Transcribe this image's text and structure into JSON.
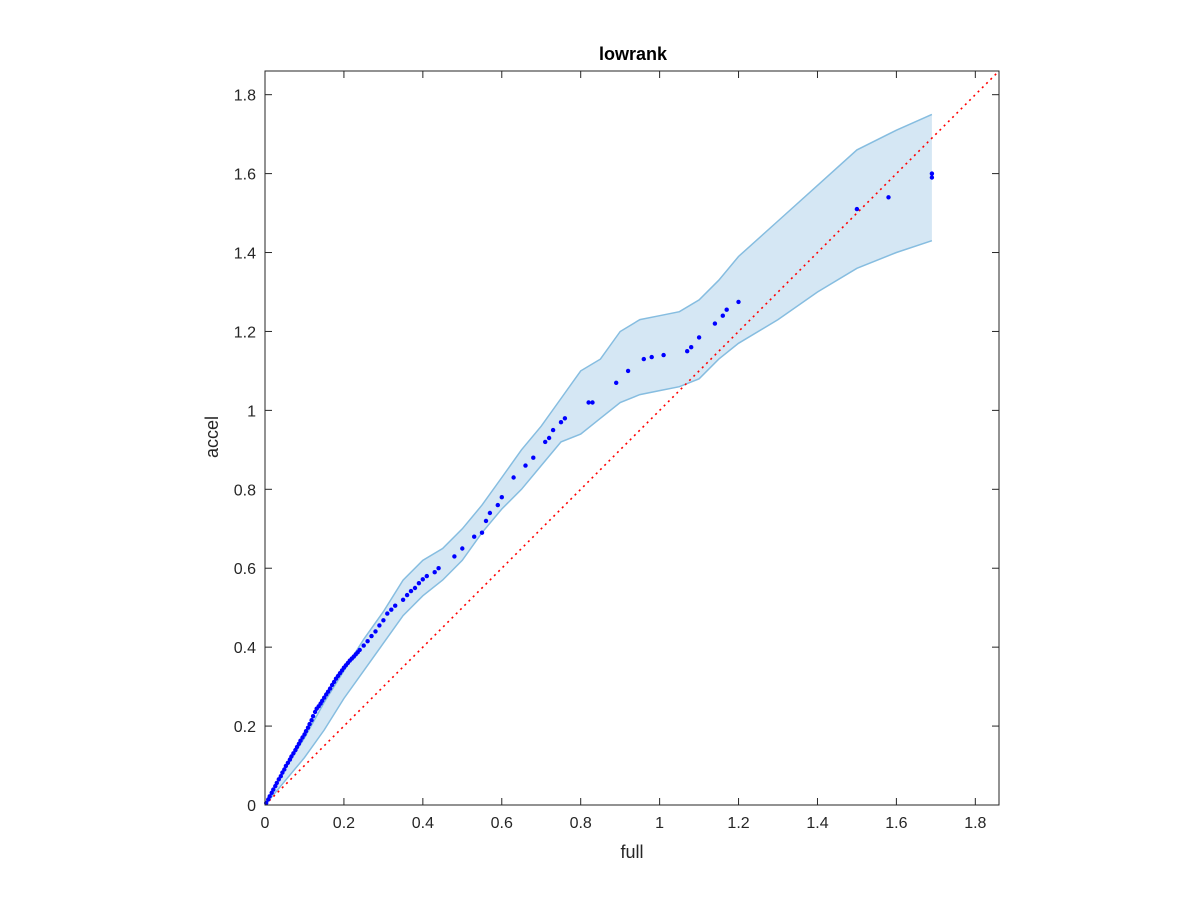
{
  "chart_data": {
    "type": "scatter",
    "title": "lowrank",
    "xlabel": "full",
    "ylabel": "accel",
    "xlim": [
      0,
      1.86
    ],
    "ylim": [
      0,
      1.86
    ],
    "xticks": [
      "0",
      "0.2",
      "0.4",
      "0.6",
      "0.8",
      "1",
      "1.2",
      "1.4",
      "1.6",
      "1.8"
    ],
    "yticks": [
      "0",
      "0.2",
      "0.4",
      "0.6",
      "0.8",
      "1",
      "1.2",
      "1.4",
      "1.6",
      "1.8"
    ],
    "xtick_values": [
      0,
      0.2,
      0.4,
      0.6,
      0.8,
      1.0,
      1.2,
      1.4,
      1.6,
      1.8
    ],
    "ytick_values": [
      0,
      0.2,
      0.4,
      0.6,
      0.8,
      1.0,
      1.2,
      1.4,
      1.6,
      1.8
    ],
    "grid": false,
    "colors": {
      "points": "#0000ff",
      "band_fill": "#d5e7f4",
      "band_edge": "#86bde0",
      "reference_line": "#ff0000",
      "axes": "#262626"
    },
    "reference_line": {
      "x": [
        0,
        1.86
      ],
      "y": [
        0,
        1.86
      ],
      "style": "dotted"
    },
    "band": {
      "x": [
        0,
        0.05,
        0.1,
        0.15,
        0.2,
        0.25,
        0.3,
        0.35,
        0.4,
        0.45,
        0.5,
        0.55,
        0.6,
        0.65,
        0.7,
        0.75,
        0.8,
        0.85,
        0.9,
        0.95,
        1.0,
        1.05,
        1.1,
        1.15,
        1.2,
        1.3,
        1.4,
        1.5,
        1.6,
        1.69
      ],
      "upper": [
        0,
        0.09,
        0.17,
        0.26,
        0.34,
        0.42,
        0.49,
        0.57,
        0.62,
        0.65,
        0.7,
        0.76,
        0.83,
        0.9,
        0.96,
        1.03,
        1.1,
        1.13,
        1.2,
        1.23,
        1.24,
        1.25,
        1.28,
        1.33,
        1.39,
        1.48,
        1.57,
        1.66,
        1.71,
        1.75
      ],
      "lower": [
        0,
        0.06,
        0.12,
        0.19,
        0.27,
        0.34,
        0.41,
        0.48,
        0.53,
        0.57,
        0.62,
        0.69,
        0.75,
        0.8,
        0.86,
        0.92,
        0.94,
        0.98,
        1.02,
        1.04,
        1.05,
        1.06,
        1.08,
        1.13,
        1.17,
        1.23,
        1.3,
        1.36,
        1.4,
        1.43
      ]
    },
    "points": {
      "x": [
        0.003,
        0.008,
        0.012,
        0.017,
        0.021,
        0.026,
        0.03,
        0.035,
        0.04,
        0.044,
        0.049,
        0.053,
        0.058,
        0.063,
        0.067,
        0.072,
        0.077,
        0.081,
        0.086,
        0.09,
        0.095,
        0.1,
        0.104,
        0.109,
        0.113,
        0.118,
        0.122,
        0.127,
        0.131,
        0.136,
        0.141,
        0.145,
        0.15,
        0.155,
        0.16,
        0.165,
        0.17,
        0.175,
        0.18,
        0.185,
        0.19,
        0.195,
        0.2,
        0.205,
        0.21,
        0.215,
        0.22,
        0.225,
        0.23,
        0.235,
        0.24,
        0.25,
        0.26,
        0.27,
        0.28,
        0.29,
        0.3,
        0.31,
        0.32,
        0.33,
        0.35,
        0.36,
        0.37,
        0.38,
        0.39,
        0.4,
        0.41,
        0.43,
        0.44,
        0.48,
        0.5,
        0.53,
        0.55,
        0.56,
        0.57,
        0.59,
        0.6,
        0.63,
        0.66,
        0.68,
        0.71,
        0.72,
        0.73,
        0.75,
        0.76,
        0.82,
        0.83,
        0.89,
        0.92,
        0.96,
        0.98,
        1.01,
        1.07,
        1.08,
        1.1,
        1.14,
        1.16,
        1.17,
        1.2,
        1.5,
        1.58,
        1.69,
        1.69
      ],
      "y": [
        0.005,
        0.014,
        0.022,
        0.031,
        0.039,
        0.048,
        0.056,
        0.065,
        0.073,
        0.082,
        0.09,
        0.099,
        0.107,
        0.115,
        0.123,
        0.131,
        0.139,
        0.147,
        0.155,
        0.163,
        0.171,
        0.179,
        0.187,
        0.196,
        0.205,
        0.215,
        0.225,
        0.236,
        0.244,
        0.25,
        0.257,
        0.264,
        0.272,
        0.28,
        0.287,
        0.295,
        0.304,
        0.312,
        0.32,
        0.327,
        0.334,
        0.341,
        0.348,
        0.354,
        0.36,
        0.366,
        0.371,
        0.376,
        0.382,
        0.387,
        0.393,
        0.404,
        0.415,
        0.428,
        0.44,
        0.455,
        0.468,
        0.485,
        0.495,
        0.505,
        0.52,
        0.532,
        0.542,
        0.55,
        0.562,
        0.572,
        0.58,
        0.59,
        0.6,
        0.63,
        0.65,
        0.68,
        0.69,
        0.72,
        0.74,
        0.76,
        0.78,
        0.83,
        0.86,
        0.88,
        0.92,
        0.93,
        0.95,
        0.97,
        0.98,
        1.02,
        1.02,
        1.07,
        1.1,
        1.13,
        1.135,
        1.14,
        1.15,
        1.16,
        1.185,
        1.22,
        1.24,
        1.255,
        1.275,
        1.51,
        1.54,
        1.59,
        1.6
      ]
    }
  }
}
